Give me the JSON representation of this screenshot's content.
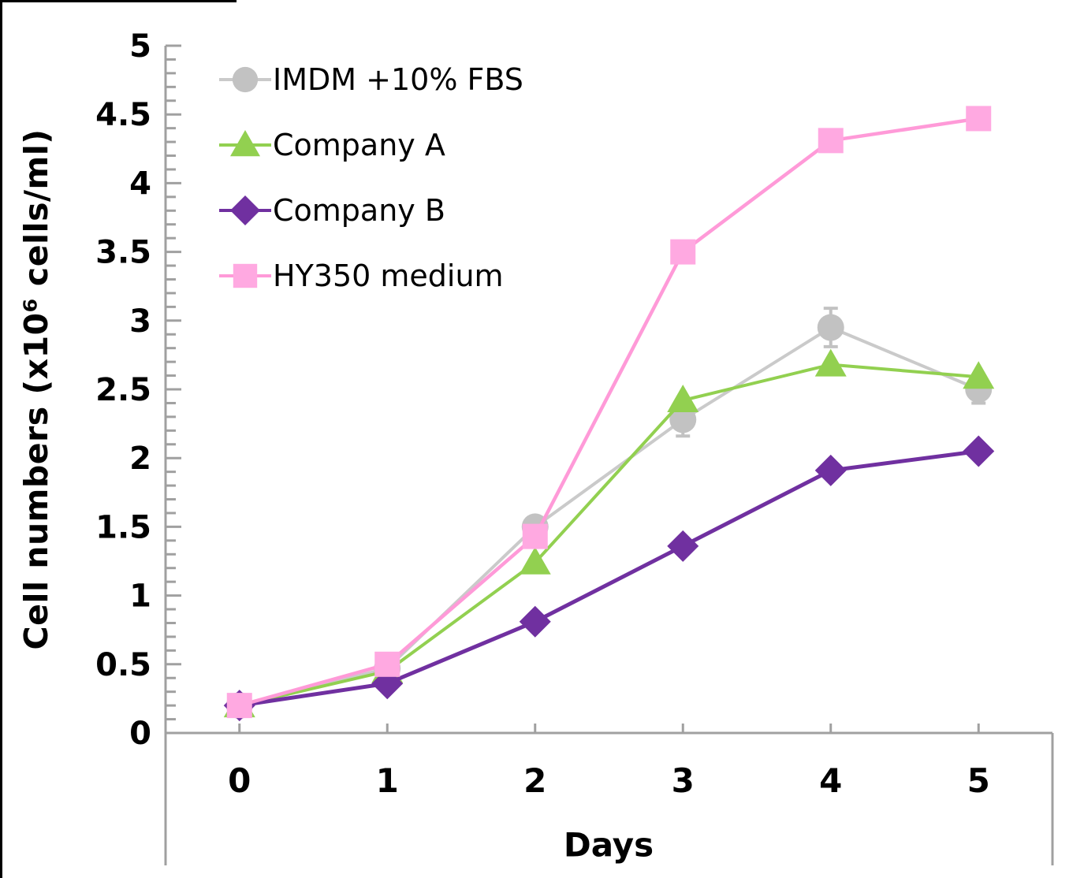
{
  "chart_data": {
    "type": "line",
    "title": "",
    "xlabel": "Days",
    "ylabel": "Cell numbers (x10⁶ cells/ml)",
    "x": [
      0,
      1,
      2,
      3,
      4,
      5
    ],
    "ylim": [
      0,
      5
    ],
    "ytick_major": 0.5,
    "ytick_minor": 0.1,
    "grid": false,
    "legend_position": "top-left-inside",
    "axis_color": "#A0A0A0",
    "series": [
      {
        "name": "IMDM +10% FBS",
        "marker": "circle",
        "color": "#C2C2C2",
        "line_color": "#CACACA",
        "line_width": 4,
        "values": [
          0.2,
          0.47,
          1.5,
          2.28,
          2.95,
          2.5
        ],
        "y_err": [
          0,
          0,
          0,
          0.12,
          0.14,
          0.1
        ]
      },
      {
        "name": "Company A",
        "marker": "triangle",
        "color": "#92D050",
        "line_color": "#92D050",
        "line_width": 4,
        "values": [
          0.2,
          0.45,
          1.24,
          2.42,
          2.68,
          2.59
        ]
      },
      {
        "name": "Company B",
        "marker": "diamond",
        "color": "#7030A0",
        "line_color": "#7030A0",
        "line_width": 5,
        "values": [
          0.2,
          0.36,
          0.81,
          1.36,
          1.91,
          2.05
        ]
      },
      {
        "name": "HY350 medium",
        "marker": "square",
        "color": "#FFA9E1",
        "line_color": "#FF9AD8",
        "line_width": 4.5,
        "values": [
          0.2,
          0.5,
          1.43,
          3.5,
          4.31,
          4.47
        ]
      }
    ]
  }
}
